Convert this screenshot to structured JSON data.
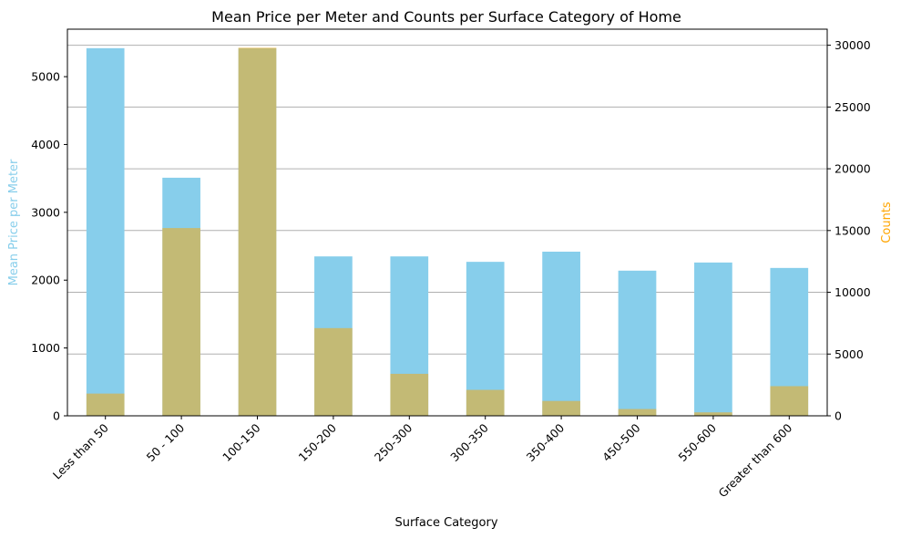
{
  "chart_data": {
    "type": "bar",
    "title": "Mean Price per Meter and Counts per Surface Category of Home",
    "xlabel": "Surface Category",
    "ylabel_left": "Mean Price per Meter",
    "ylabel_right": "Counts",
    "categories": [
      "Less than 50",
      "50 - 100",
      "100-150",
      "150-200",
      "250-300",
      "300-350",
      "350-400",
      "450-500",
      "550-600",
      "Greater than 600"
    ],
    "series": [
      {
        "name": "Mean Price per Meter",
        "axis": "left",
        "color": "#87ceeb",
        "values": [
          5420,
          3510,
          5420,
          2350,
          2350,
          2270,
          2420,
          2140,
          2260,
          2180
        ]
      },
      {
        "name": "Counts",
        "axis": "right",
        "color": "#ffa500",
        "opacity": 0.5,
        "values": [
          1800,
          15200,
          29800,
          7100,
          3400,
          2100,
          1200,
          550,
          280,
          2400
        ]
      }
    ],
    "ylim_left": [
      0,
      5700
    ],
    "ylim_right": [
      0,
      31300
    ],
    "yticks_left": [
      0,
      1000,
      2000,
      3000,
      4000,
      5000
    ],
    "yticks_right": [
      0,
      5000,
      10000,
      15000,
      20000,
      25000,
      30000
    ],
    "grid": "horizontal, right axis",
    "legend": "none"
  }
}
